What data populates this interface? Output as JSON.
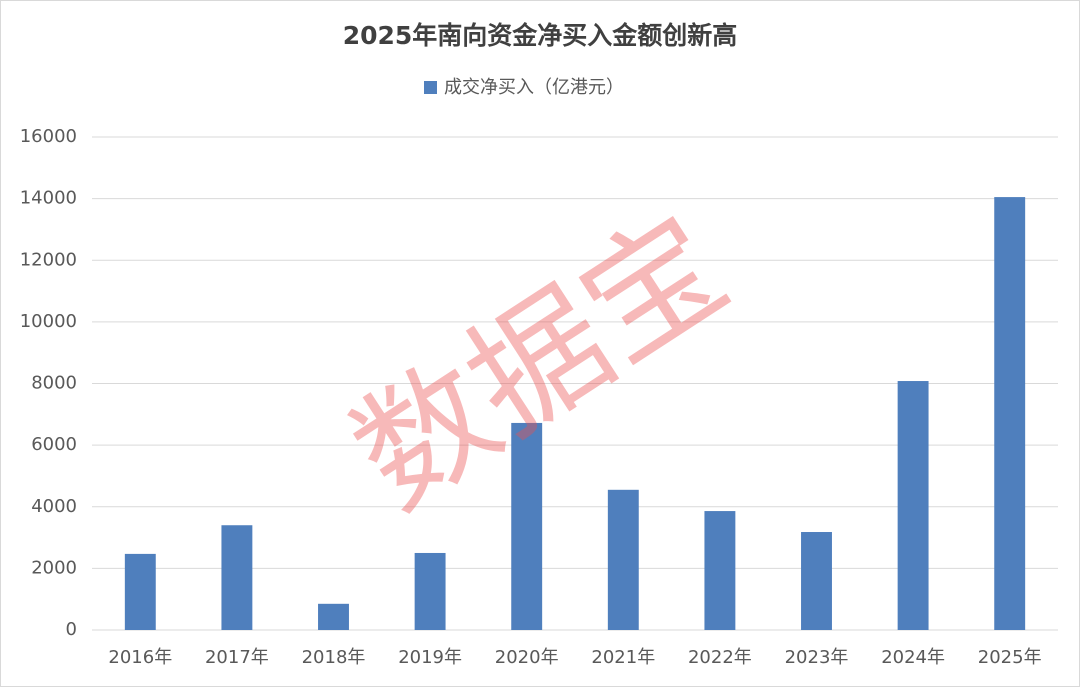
{
  "chart_data": {
    "type": "bar",
    "title": "2025年南向资金净买入金额创新高",
    "categories": [
      "2016年",
      "2017年",
      "2018年",
      "2019年",
      "2020年",
      "2021年",
      "2022年",
      "2023年",
      "2024年",
      "2025年"
    ],
    "series": [
      {
        "name": "成交净买入（亿港元）",
        "color": "#4f7fbd",
        "values": [
          2470,
          3400,
          850,
          2500,
          6720,
          4550,
          3860,
          3180,
          8080,
          14050
        ]
      }
    ],
    "ylim": [
      0,
      16000
    ],
    "yticks": [
      0,
      2000,
      4000,
      6000,
      8000,
      10000,
      12000,
      14000,
      16000
    ],
    "grid": true,
    "legend": "top",
    "watermark": "数据宝"
  }
}
